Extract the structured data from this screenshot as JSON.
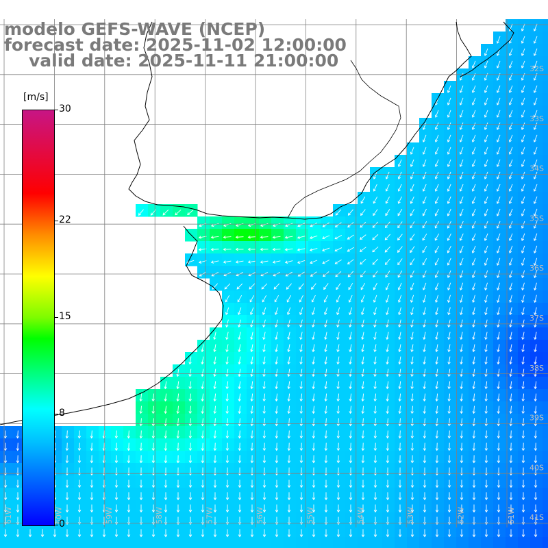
{
  "header": {
    "model": "modelo GEFS-WAVE (NCEP)",
    "forecast": "forecast date: 2025-11-02 12:00:00",
    "valid": "valid date: 2025-11-11 21:00:00"
  },
  "colorbar": {
    "unit": "[m/s]",
    "ticks": [
      {
        "label": "30",
        "value": 30
      },
      {
        "label": "22",
        "value": 22
      },
      {
        "label": "15",
        "value": 15
      },
      {
        "label": "8",
        "value": 8
      },
      {
        "label": "0",
        "value": 0
      }
    ],
    "min": 0,
    "max": 30
  },
  "map": {
    "lat_labels": [
      "32S",
      "33S",
      "34S",
      "35S",
      "36S",
      "37S",
      "38S",
      "39S",
      "40S",
      "41S"
    ],
    "lon_labels": [
      "61W",
      "60W",
      "59W",
      "58W",
      "57W",
      "56W",
      "55W",
      "54W",
      "53W",
      "52W",
      "51W"
    ],
    "field": "wind speed",
    "colors": {
      "land": "#ffffff",
      "coast": "#000000",
      "grid": "#808080",
      "arrows": "#ffffff"
    }
  }
}
